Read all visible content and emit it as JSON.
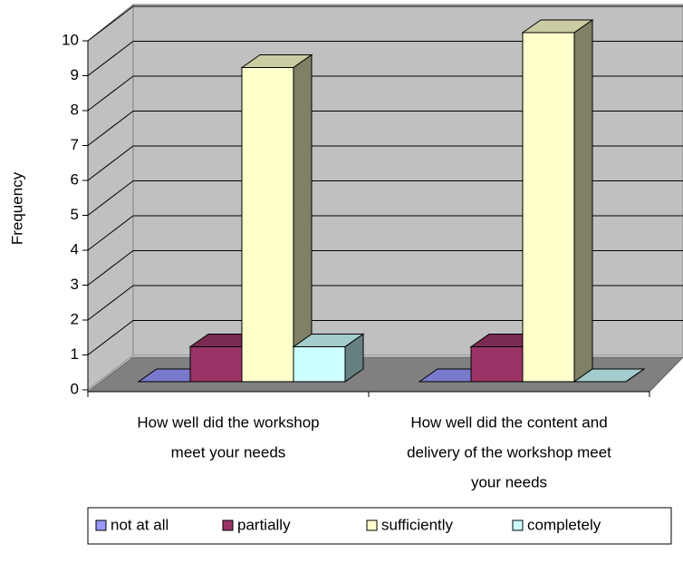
{
  "chart_data": {
    "type": "bar3d",
    "categories": [
      [
        "How well did the workshop",
        "meet your needs"
      ],
      [
        "How well did the content and",
        "delivery of the workshop meet",
        "your needs"
      ]
    ],
    "series": [
      {
        "name": "not at all",
        "color": "#9999ff",
        "values": [
          0,
          0
        ]
      },
      {
        "name": "partially",
        "color": "#993366",
        "values": [
          1,
          1
        ]
      },
      {
        "name": "sufficiently",
        "color": "#ffffcc",
        "values": [
          9,
          10
        ]
      },
      {
        "name": "completely",
        "color": "#ccffff",
        "values": [
          1,
          0
        ]
      }
    ],
    "y_label": "Frequency",
    "ylim": [
      0,
      10
    ],
    "yticks": [
      0,
      1,
      2,
      3,
      4,
      5,
      6,
      7,
      8,
      9,
      10
    ],
    "grid": true,
    "legend": "bottom"
  }
}
